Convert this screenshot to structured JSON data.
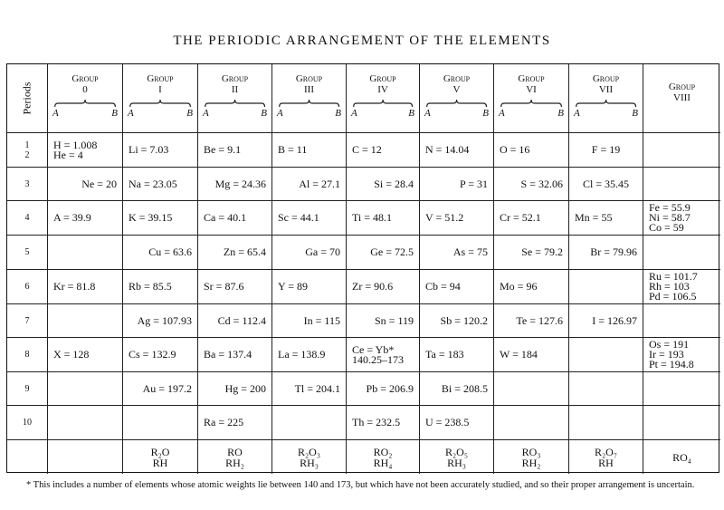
{
  "title": "THE PERIODIC ARRANGEMENT OF THE ELEMENTS",
  "header": {
    "periods_label": "Periods",
    "group_word": "Group",
    "sub_a": "A",
    "sub_b": "B",
    "groups": [
      "0",
      "I",
      "II",
      "III",
      "IV",
      "V",
      "VI",
      "VII",
      "VIII"
    ]
  },
  "rows": [
    {
      "period": [
        "1",
        "2"
      ],
      "cells": [
        [
          "H = 1.008",
          "He = 4"
        ],
        [
          "Li = 7.03"
        ],
        [
          "Be = 9.1"
        ],
        [
          "B = 11"
        ],
        [
          "C = 12"
        ],
        [
          "N = 14.04"
        ],
        [
          "O = 16"
        ],
        [
          "F = 19"
        ],
        []
      ],
      "align": [
        "A",
        "A",
        "A",
        "A",
        "A",
        "A",
        "A",
        "C",
        "A"
      ]
    },
    {
      "period": [
        "3"
      ],
      "cells": [
        [
          "Ne = 20"
        ],
        [
          "Na = 23.05"
        ],
        [
          "Mg = 24.36"
        ],
        [
          "Al = 27.1"
        ],
        [
          "Si = 28.4"
        ],
        [
          "P = 31"
        ],
        [
          "S = 32.06"
        ],
        [
          "Cl = 35.45"
        ],
        []
      ],
      "align": [
        "B",
        "A",
        "B",
        "B",
        "B",
        "B",
        "B",
        "C",
        "A"
      ]
    },
    {
      "period": [
        "4"
      ],
      "cells": [
        [
          "A = 39.9"
        ],
        [
          "K = 39.15"
        ],
        [
          "Ca = 40.1"
        ],
        [
          "Sc = 44.1"
        ],
        [
          "Ti = 48.1"
        ],
        [
          "V = 51.2"
        ],
        [
          "Cr = 52.1"
        ],
        [
          "Mn = 55"
        ],
        [
          "Fe = 55.9",
          "Ni = 58.7",
          "Co = 59"
        ]
      ],
      "align": [
        "A",
        "A",
        "A",
        "A",
        "A",
        "A",
        "A",
        "A",
        "A"
      ]
    },
    {
      "period": [
        "5"
      ],
      "cells": [
        [],
        [
          "Cu = 63.6"
        ],
        [
          "Zn = 65.4"
        ],
        [
          "Ga = 70"
        ],
        [
          "Ge = 72.5"
        ],
        [
          "As = 75"
        ],
        [
          "Se = 79.2"
        ],
        [
          "Br = 79.96"
        ],
        []
      ],
      "align": [
        "A",
        "B",
        "B",
        "B",
        "B",
        "B",
        "B",
        "B",
        "A"
      ]
    },
    {
      "period": [
        "6"
      ],
      "cells": [
        [
          "Kr = 81.8"
        ],
        [
          "Rb = 85.5"
        ],
        [
          "Sr = 87.6"
        ],
        [
          "Y = 89"
        ],
        [
          "Zr = 90.6"
        ],
        [
          "Cb = 94"
        ],
        [
          "Mo = 96"
        ],
        [],
        [
          "Ru = 101.7",
          "Rh = 103",
          "Pd = 106.5"
        ]
      ],
      "align": [
        "A",
        "A",
        "A",
        "A",
        "A",
        "A",
        "A",
        "A",
        "A"
      ]
    },
    {
      "period": [
        "7"
      ],
      "cells": [
        [],
        [
          "Ag = 107.93"
        ],
        [
          "Cd = 112.4"
        ],
        [
          "In = 115"
        ],
        [
          "Sn = 119"
        ],
        [
          "Sb = 120.2"
        ],
        [
          "Te = 127.6"
        ],
        [
          "I = 126.97"
        ],
        []
      ],
      "align": [
        "A",
        "B",
        "B",
        "B",
        "B",
        "B",
        "B",
        "B",
        "A"
      ]
    },
    {
      "period": [
        "8"
      ],
      "cells": [
        [
          "X = 128"
        ],
        [
          "Cs = 132.9"
        ],
        [
          "Ba = 137.4"
        ],
        [
          "La = 138.9"
        ],
        [
          "Ce = Yb*",
          "140.25–173"
        ],
        [
          "Ta = 183"
        ],
        [
          "W = 184"
        ],
        [],
        [
          "Os = 191",
          "Ir = 193",
          "Pt = 194.8"
        ]
      ],
      "align": [
        "A",
        "A",
        "A",
        "A",
        "A",
        "A",
        "A",
        "A",
        "A"
      ]
    },
    {
      "period": [
        "9"
      ],
      "cells": [
        [],
        [
          "Au = 197.2"
        ],
        [
          "Hg = 200"
        ],
        [
          "Tl = 204.1"
        ],
        [
          "Pb = 206.9"
        ],
        [
          "Bi = 208.5"
        ],
        [],
        [],
        []
      ],
      "align": [
        "A",
        "B",
        "B",
        "B",
        "B",
        "B",
        "A",
        "A",
        "A"
      ]
    },
    {
      "period": [
        "10"
      ],
      "cells": [
        [],
        [],
        [
          "Ra = 225"
        ],
        [],
        [
          "Th = 232.5"
        ],
        [
          "U = 238.5"
        ],
        [],
        [],
        []
      ],
      "align": [
        "A",
        "A",
        "A",
        "A",
        "A",
        "A",
        "A",
        "A",
        "A"
      ]
    }
  ],
  "formulas": [
    [],
    [
      "R₂O",
      "RH"
    ],
    [
      "RO",
      "RH₂"
    ],
    [
      "R₂O₃",
      "RH₃"
    ],
    [
      "RO₂",
      "RH₄"
    ],
    [
      "R₂O₅",
      "RH₃"
    ],
    [
      "RO₃",
      "RH₂"
    ],
    [
      "R₂O₇",
      "RH"
    ],
    [
      "RO₄"
    ]
  ],
  "footnote": "* This includes a number of elements whose atomic weights lie between 140 and 173, but which have not been accurately studied, and so their proper arrangement is uncertain."
}
